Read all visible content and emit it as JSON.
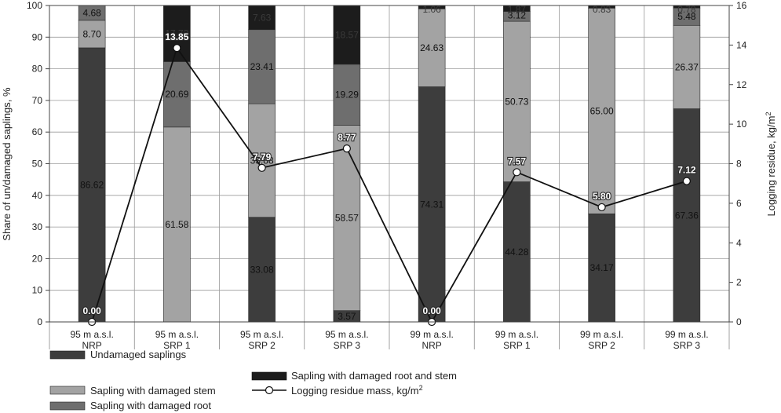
{
  "chart_data": {
    "type": "bar",
    "stacked": true,
    "categories": [
      [
        "95 m a.s.l.",
        "NRP"
      ],
      [
        "95 m a.s.l.",
        "SRP 1"
      ],
      [
        "95 m a.s.l.",
        "SRP 2"
      ],
      [
        "95 m a.s.l.",
        "SRP 3"
      ],
      [
        "99 m a.s.l.",
        "NRP"
      ],
      [
        "99 m a.s.l.",
        "SRP 1"
      ],
      [
        "99 m a.s.l.",
        "SRP 2"
      ],
      [
        "99 m a.s.l.",
        "SRP 3"
      ]
    ],
    "series": [
      {
        "name": "Undamaged saplings",
        "color": "#3d3d3d",
        "label_color": "#111111",
        "values": [
          86.62,
          0,
          33.08,
          3.57,
          74.31,
          44.28,
          34.17,
          67.36
        ],
        "labels": [
          "86.62",
          "",
          "33.08",
          "3.57",
          "74.31",
          "44.28",
          "34.17",
          "67.36"
        ]
      },
      {
        "name": "Sapling with damaged stem",
        "color": "#a3a3a3",
        "label_color": "#111111",
        "values": [
          8.7,
          61.58,
          35.88,
          58.57,
          24.63,
          50.73,
          65.0,
          26.37
        ],
        "labels": [
          "8.70",
          "61.58",
          "35.88",
          "58.57",
          "24.63",
          "50.73",
          "65.00",
          "26.37"
        ]
      },
      {
        "name": "Sapling with damaged root",
        "color": "#6e6e6e",
        "label_color": "#111111",
        "values": [
          4.68,
          20.69,
          23.41,
          19.29,
          0,
          3.12,
          0,
          5.48
        ],
        "labels": [
          "4.68",
          "20.69",
          "23.41",
          "19.29",
          "",
          "3.12",
          "",
          "5.48"
        ]
      },
      {
        "name": "Sapling with damaged root and stem",
        "color": "#1c1c1c",
        "label_color": "#3a3a3a",
        "values": [
          0,
          17.73,
          7.63,
          18.57,
          1.06,
          1.87,
          0.83,
          0.78
        ],
        "labels": [
          "",
          "17.73",
          "7.63",
          "18.57",
          "1.06",
          "1.87",
          "0.83",
          "0.78"
        ]
      }
    ],
    "line": {
      "name": "Logging residue mass, kg/m²",
      "values": [
        0.0,
        13.85,
        7.79,
        8.77,
        0.0,
        7.57,
        5.8,
        7.12
      ],
      "labels": [
        "0.00",
        "13.85",
        "7.79",
        "8.77",
        "0.00",
        "7.57",
        "5.80",
        "7.12"
      ]
    },
    "ylabel": "Share of un/damaged saplings, %",
    "ylabel2_main": "Logging residue, kg/m",
    "ylabel2_sup": "2",
    "ylim": [
      0,
      100
    ],
    "yticks": [
      0,
      10,
      20,
      30,
      40,
      50,
      60,
      70,
      80,
      90,
      100
    ],
    "y2lim": [
      0,
      16
    ],
    "y2ticks": [
      0,
      2,
      4,
      6,
      8,
      10,
      12,
      14,
      16
    ],
    "grid": true,
    "legend_position": "bottom"
  },
  "legend": {
    "undamaged": "Undamaged saplings",
    "damaged_stem": "Sapling with damaged stem",
    "damaged_root": "Sapling with damaged root",
    "damaged_root_stem": "Sapling with damaged root and stem",
    "residue_main": "Logging residue mass, kg/m",
    "residue_sup": "2"
  }
}
